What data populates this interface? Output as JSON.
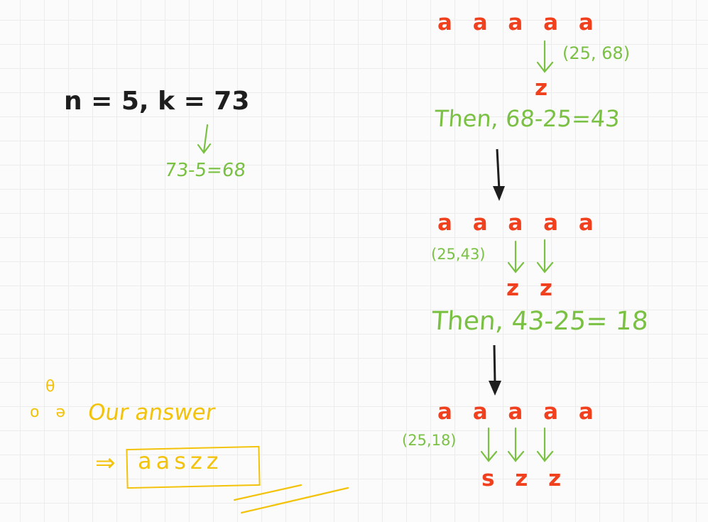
{
  "problem": {
    "statement": "n = 5, k = 73"
  },
  "first_step": {
    "calc": "73-5=68"
  },
  "stage1": {
    "letters": "a a a a a",
    "pair": "(25, 68)",
    "result": "z",
    "then": "Then, 68-25=43"
  },
  "stage2": {
    "letters": "a a a a a",
    "pair": "(25,43)",
    "result": "z z",
    "then": "Then, 43-25= 18"
  },
  "stage3": {
    "letters": "a a a a a",
    "pair": "(25,18)",
    "result": "s z z"
  },
  "answer": {
    "small_mark": "θ",
    "small_marks": "o ə",
    "label": "Our answer",
    "arrow": "⇒",
    "value": "aaszz"
  },
  "colors": {
    "red": "#f0401e",
    "green": "#7ac143",
    "yellow": "#f3c20b",
    "black": "#1e1e1e"
  }
}
